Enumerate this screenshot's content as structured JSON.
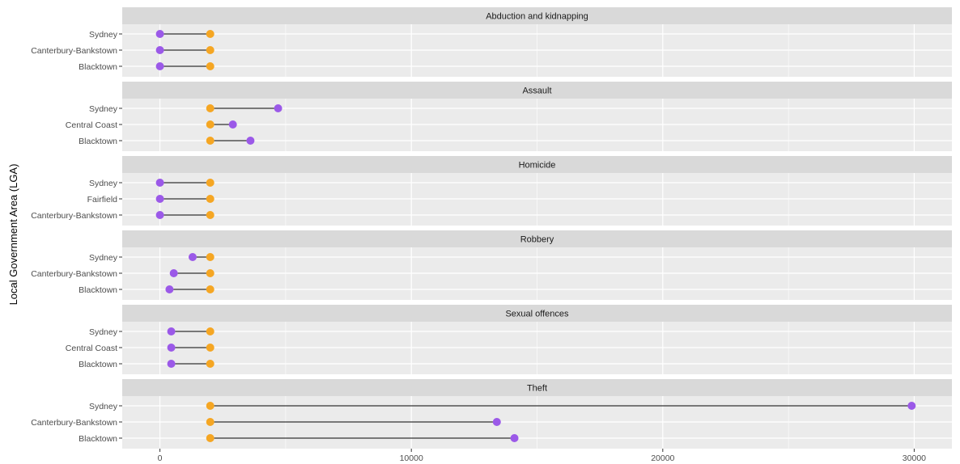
{
  "chart_data": {
    "type": "dumbbell",
    "title": "",
    "xlabel": "",
    "ylabel": "Local Government Area (LGA)",
    "xlim": [
      -1500,
      31500
    ],
    "x_ticks": [
      0,
      10000,
      20000,
      30000
    ],
    "x_tick_labels": [
      "0",
      "10000",
      "20000",
      "30000"
    ],
    "grid": true,
    "colors": {
      "start": "#F5A623",
      "end": "#9B59E8",
      "panel": "#EBEBEB",
      "strip": "#D9D9D9",
      "segment": "#000000"
    },
    "panels": [
      {
        "title": "Abduction and kidnapping",
        "rows": [
          {
            "lga": "Sydney",
            "start": 2000,
            "end": 0
          },
          {
            "lga": "Canterbury-Bankstown",
            "start": 2000,
            "end": 0
          },
          {
            "lga": "Blacktown",
            "start": 2000,
            "end": 0
          }
        ]
      },
      {
        "title": "Assault",
        "rows": [
          {
            "lga": "Sydney",
            "start": 2000,
            "end": 4700
          },
          {
            "lga": "Central Coast",
            "start": 2000,
            "end": 2900
          },
          {
            "lga": "Blacktown",
            "start": 2000,
            "end": 3600
          }
        ]
      },
      {
        "title": "Homicide",
        "rows": [
          {
            "lga": "Sydney",
            "start": 2000,
            "end": 0
          },
          {
            "lga": "Fairfield",
            "start": 2000,
            "end": 0
          },
          {
            "lga": "Canterbury-Bankstown",
            "start": 2000,
            "end": 0
          }
        ]
      },
      {
        "title": "Robbery",
        "rows": [
          {
            "lga": "Sydney",
            "start": 2000,
            "end": 1300
          },
          {
            "lga": "Canterbury-Bankstown",
            "start": 2000,
            "end": 550
          },
          {
            "lga": "Blacktown",
            "start": 2000,
            "end": 380
          }
        ]
      },
      {
        "title": "Sexual offences",
        "rows": [
          {
            "lga": "Sydney",
            "start": 2000,
            "end": 450
          },
          {
            "lga": "Central Coast",
            "start": 2000,
            "end": 450
          },
          {
            "lga": "Blacktown",
            "start": 2000,
            "end": 450
          }
        ]
      },
      {
        "title": "Theft",
        "rows": [
          {
            "lga": "Sydney",
            "start": 2000,
            "end": 29900
          },
          {
            "lga": "Canterbury-Bankstown",
            "start": 2000,
            "end": 13400
          },
          {
            "lga": "Blacktown",
            "start": 2000,
            "end": 14100
          }
        ]
      }
    ]
  }
}
